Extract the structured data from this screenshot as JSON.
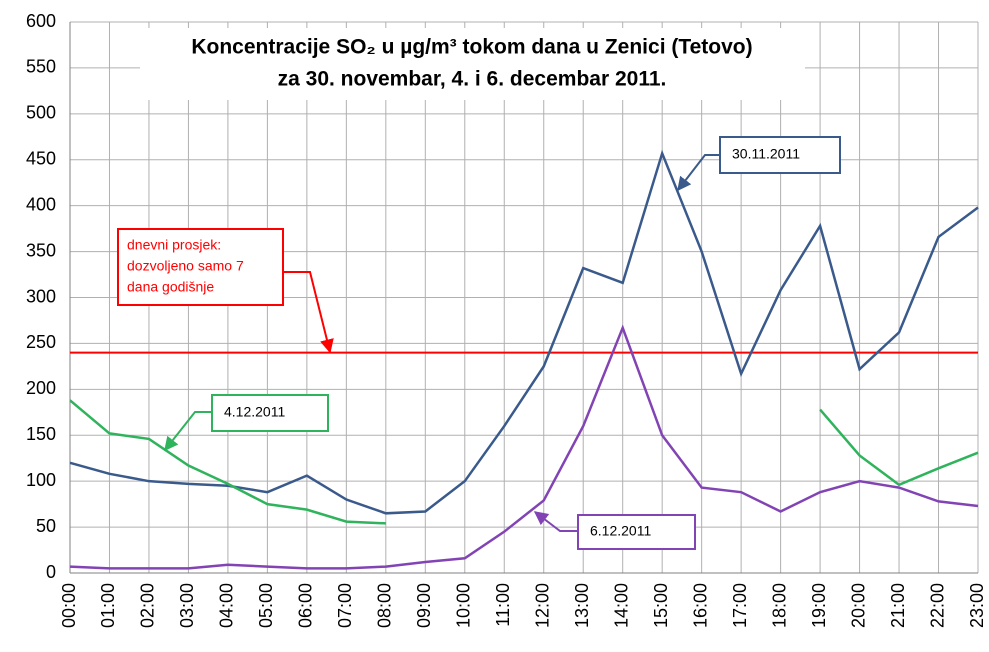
{
  "chart_data": {
    "type": "line",
    "title": [
      "Koncentracije SO₂ u µg/m³ tokom dana u Zenici (Tetovo)",
      "za 30. novembar, 4. i 6. decembar 2011."
    ],
    "categories": [
      "00:00",
      "01:00",
      "02:00",
      "03:00",
      "04:00",
      "05:00",
      "06:00",
      "07:00",
      "08:00",
      "09:00",
      "10:00",
      "11:00",
      "12:00",
      "13:00",
      "14:00",
      "15:00",
      "16:00",
      "17:00",
      "18:00",
      "19:00",
      "20:00",
      "21:00",
      "22:00",
      "23:00"
    ],
    "series": [
      {
        "name": "30.11.2011",
        "color": "#3a5a8c",
        "values": [
          120,
          108,
          100,
          97,
          95,
          88,
          106,
          80,
          65,
          67,
          100,
          160,
          225,
          332,
          316,
          457,
          350,
          217,
          308,
          378,
          222,
          262,
          366,
          398
        ]
      },
      {
        "name": "4.12.2011",
        "color": "#2fb35c",
        "values": [
          188,
          152,
          146,
          117,
          97,
          75,
          69,
          56,
          54,
          null,
          null,
          null,
          null,
          null,
          null,
          null,
          null,
          null,
          null,
          178,
          128,
          96,
          114,
          131
        ]
      },
      {
        "name": "6.12.2011",
        "color": "#8244b4",
        "values": [
          7,
          5,
          5,
          5,
          9,
          7,
          5,
          5,
          7,
          12,
          16,
          45,
          79,
          160,
          267,
          150,
          93,
          88,
          67,
          88,
          100,
          93,
          78,
          73
        ]
      }
    ],
    "threshold": 240,
    "threshold_color": "#ff0000",
    "threshold_label": [
      "dnevni prosjek:",
      "dozvoljeno samo 7",
      "dana godišnje"
    ],
    "ylim": [
      0,
      600
    ],
    "yticks": [
      0,
      50,
      100,
      150,
      200,
      250,
      300,
      350,
      400,
      450,
      500,
      550,
      600
    ],
    "grid": true
  }
}
